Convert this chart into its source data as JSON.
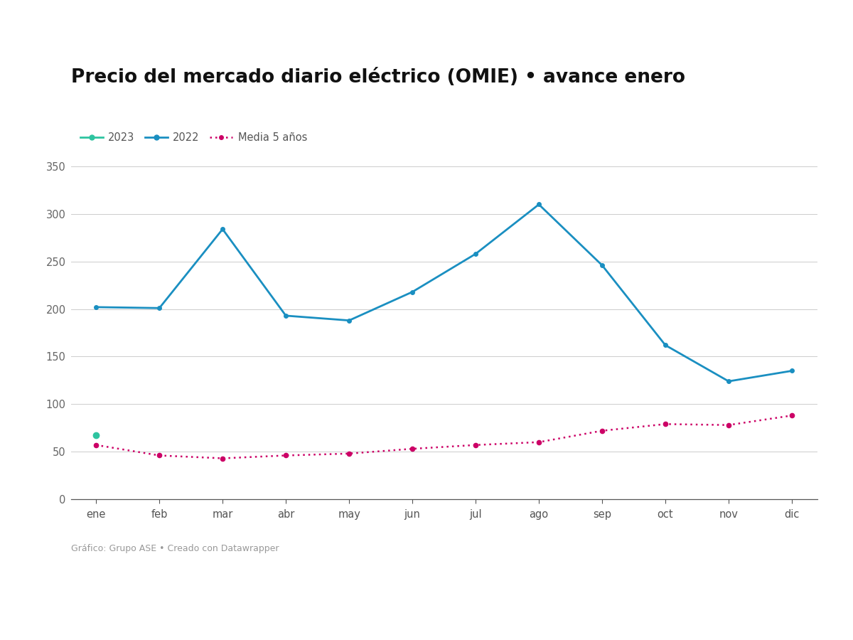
{
  "title": "Precio del mercado diario eléctrico (OMIE) • avance enero",
  "footer": "Gráfico: Grupo ASE • Creado con Datawrapper",
  "months": [
    "ene",
    "feb",
    "mar",
    "abr",
    "may",
    "jun",
    "jul",
    "ago",
    "sep",
    "oct",
    "nov",
    "dic"
  ],
  "series_2022": [
    202,
    201,
    284,
    193,
    188,
    218,
    258,
    310,
    246,
    162,
    124,
    135
  ],
  "series_2023": [
    67
  ],
  "series_media": [
    57,
    46,
    43,
    46,
    48,
    53,
    57,
    60,
    72,
    79,
    78,
    88
  ],
  "color_2022": "#1a8fc1",
  "color_2023": "#2ec4a0",
  "color_media": "#cc0066",
  "ylim": [
    0,
    350
  ],
  "yticks": [
    0,
    50,
    100,
    150,
    200,
    250,
    300,
    350
  ],
  "background_color": "#ffffff",
  "title_fontsize": 19,
  "legend_fontsize": 10.5,
  "tick_fontsize": 10.5,
  "footer_fontsize": 9
}
